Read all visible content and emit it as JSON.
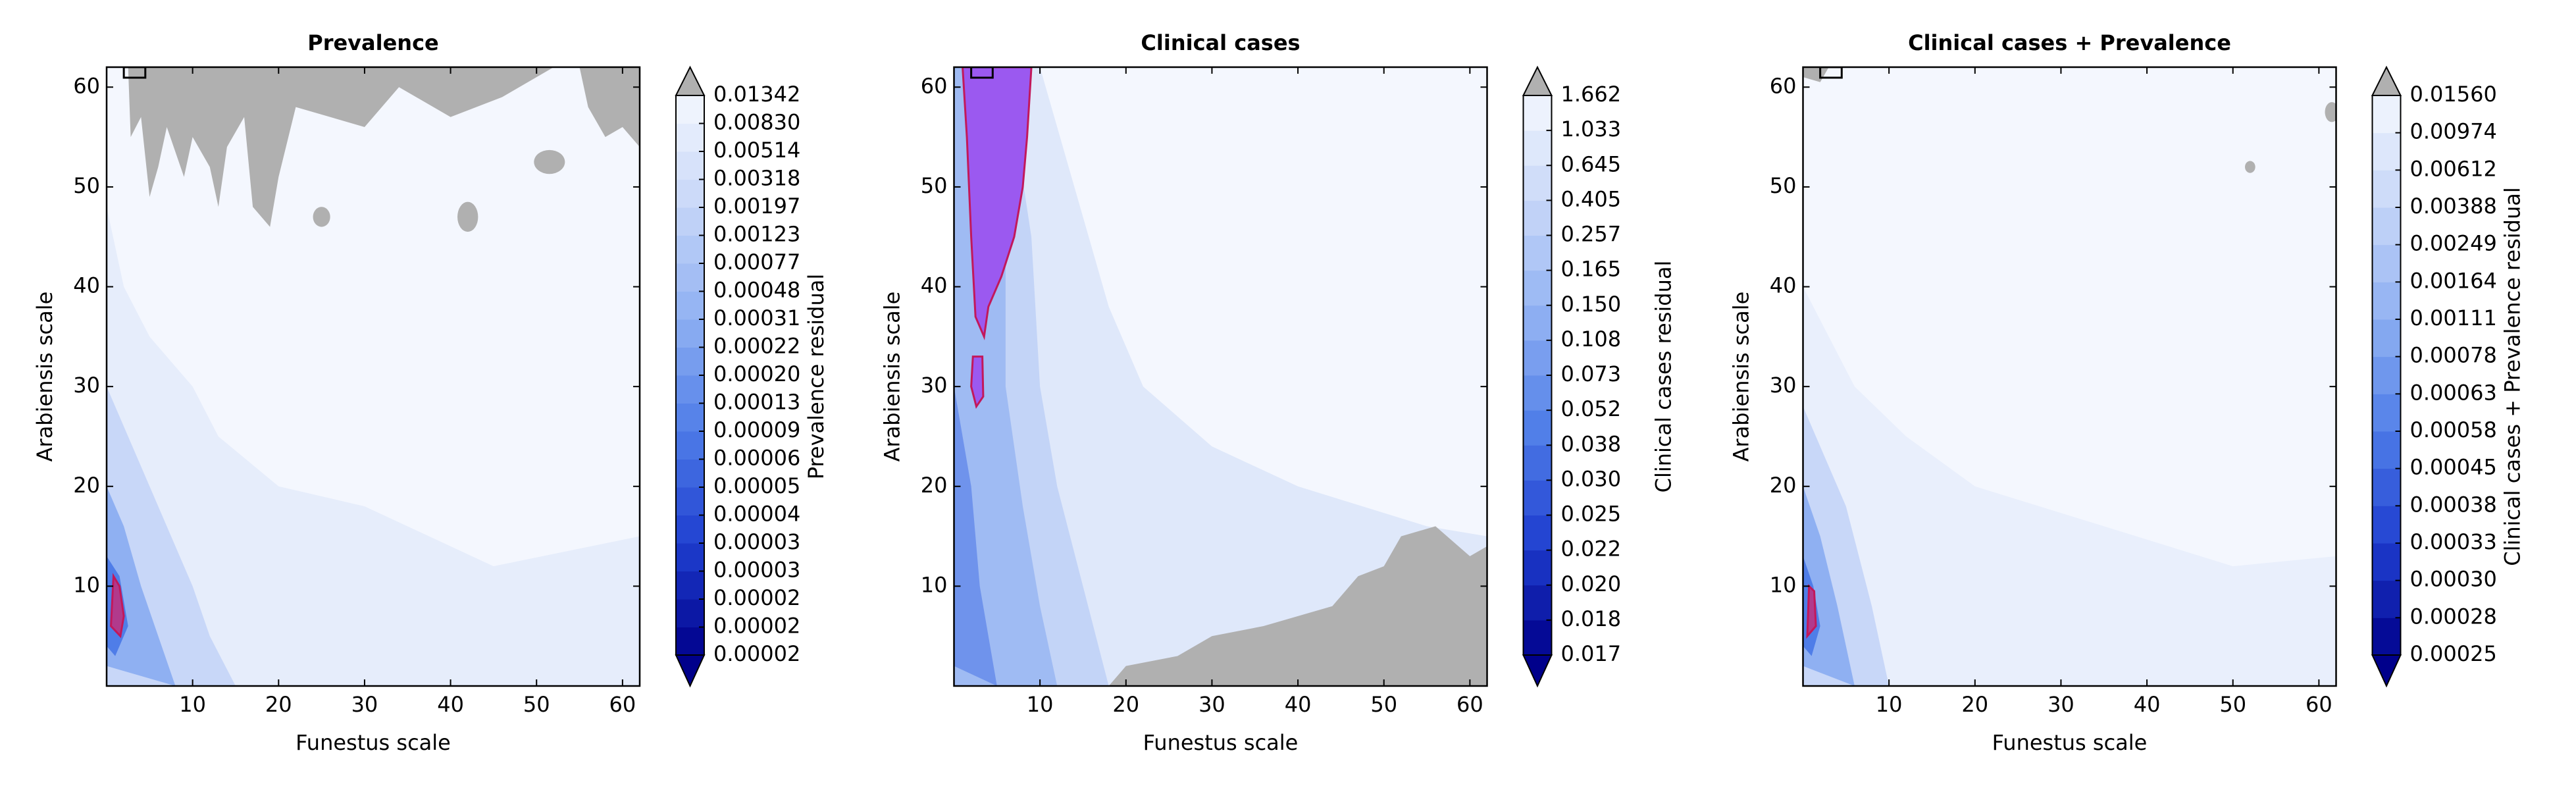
{
  "chart_data": [
    {
      "type": "contour",
      "title": "Prevalence",
      "xlabel": "Funestus scale",
      "ylabel": "Arabiensis scale",
      "colorbar_label": "Prevalence residual",
      "xlim": [
        0,
        62
      ],
      "ylim": [
        0,
        62
      ],
      "xticks": [
        10,
        20,
        30,
        40,
        50,
        60
      ],
      "yticks": [
        10,
        20,
        30,
        40,
        50,
        60
      ],
      "cbar_ticks": [
        2e-05,
        2e-05,
        2e-05,
        3e-05,
        3e-05,
        4e-05,
        5e-05,
        6e-05,
        9e-05,
        0.00013,
        {
          "value": 0.0002,
          "label": "0.00020"
        },
        0.00022,
        0.00031,
        0.00048,
        0.00077,
        0.00123,
        0.00197,
        0.00318,
        0.00514,
        {
          "value": 0.0083,
          "label": "0.00830"
        },
        0.01342
      ]
    },
    {
      "type": "contour",
      "title": "Clinical cases",
      "xlabel": "Funestus scale",
      "ylabel": "Arabiensis scale",
      "colorbar_label": "Clinical cases residual",
      "xlim": [
        0,
        62
      ],
      "ylim": [
        0,
        62
      ],
      "xticks": [
        10,
        20,
        30,
        40,
        50,
        60
      ],
      "yticks": [
        10,
        20,
        30,
        40,
        50,
        60
      ],
      "cbar_ticks": [
        0.017,
        0.018,
        {
          "value": 0.02,
          "label": "0.020"
        },
        0.022,
        0.025,
        {
          "value": 0.03,
          "label": "0.030"
        },
        0.038,
        0.052,
        0.073,
        0.108,
        {
          "value": 0.15,
          "label": "0.150"
        },
        0.165,
        0.257,
        0.405,
        0.645,
        1.033,
        1.662
      ]
    },
    {
      "type": "contour",
      "title": "Clinical cases + Prevalence",
      "xlabel": "Funestus scale",
      "ylabel": "Arabiensis scale",
      "colorbar_label": "Clinical cases + Prevalence residual",
      "xlim": [
        0,
        62
      ],
      "ylim": [
        0,
        62
      ],
      "xticks": [
        10,
        20,
        30,
        40,
        50,
        60
      ],
      "yticks": [
        10,
        20,
        30,
        40,
        50,
        60
      ],
      "cbar_ticks": [
        0.00025,
        0.00028,
        {
          "value": 0.0003,
          "label": "0.00030"
        },
        0.00033,
        0.00038,
        0.00045,
        0.00058,
        0.00063,
        0.00078,
        0.00111,
        0.00164,
        0.00249,
        0.00388,
        0.00612,
        0.00974,
        {
          "value": 0.0156,
          "label": "0.01560"
        }
      ]
    }
  ]
}
